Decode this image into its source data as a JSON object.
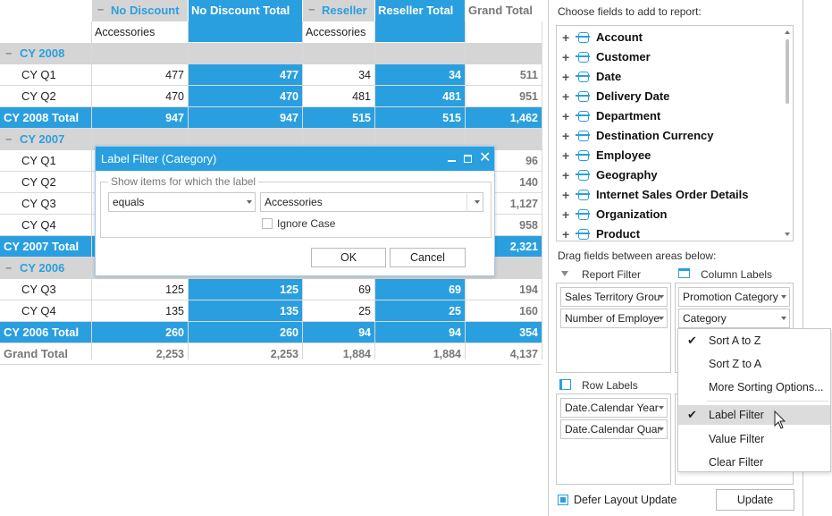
{
  "pivot": {
    "col_headers": {
      "no_discount": "No Discount",
      "no_discount_total": "No Discount Total",
      "reseller": "Reseller",
      "reseller_total": "Reseller Total",
      "grand_total": "Grand Total",
      "sub1": "Accessories",
      "sub2": "Accessories",
      "collapse_glyph": "−"
    },
    "rows": [
      {
        "kind": "year",
        "label": "CY 2008"
      },
      {
        "kind": "q",
        "label": "CY Q1",
        "v": [
          "477",
          "477",
          "34",
          "34",
          "511"
        ]
      },
      {
        "kind": "q",
        "label": "CY Q2",
        "v": [
          "470",
          "470",
          "481",
          "481",
          "951"
        ]
      },
      {
        "kind": "total",
        "label": "CY 2008 Total",
        "v": [
          "947",
          "947",
          "515",
          "515",
          "1,462"
        ]
      },
      {
        "kind": "year",
        "label": "CY 2007"
      },
      {
        "kind": "q",
        "label": "CY Q1",
        "v": [
          "",
          "",
          "",
          "",
          "96"
        ]
      },
      {
        "kind": "q",
        "label": "CY Q2",
        "v": [
          "",
          "",
          "",
          "",
          "140"
        ]
      },
      {
        "kind": "q",
        "label": "CY Q3",
        "v": [
          "",
          "",
          "",
          "",
          "1,127"
        ]
      },
      {
        "kind": "q",
        "label": "CY Q4",
        "v": [
          "",
          "",
          "",
          "",
          "958"
        ]
      },
      {
        "kind": "total",
        "label": "CY 2007 Total",
        "v": [
          "",
          "",
          "",
          "",
          "2,321"
        ]
      },
      {
        "kind": "year",
        "label": "CY 2006"
      },
      {
        "kind": "q",
        "label": "CY Q3",
        "v": [
          "125",
          "125",
          "69",
          "69",
          "194"
        ]
      },
      {
        "kind": "q",
        "label": "CY Q4",
        "v": [
          "135",
          "135",
          "25",
          "25",
          "160"
        ]
      },
      {
        "kind": "total",
        "label": "CY 2006 Total",
        "v": [
          "260",
          "260",
          "94",
          "94",
          "354"
        ]
      },
      {
        "kind": "grand",
        "label": "Grand Total",
        "v": [
          "2,253",
          "2,253",
          "1,884",
          "1,884",
          "4,137"
        ]
      }
    ]
  },
  "dialog": {
    "title": "Label Filter (Category)",
    "group_label": "Show items for which the label",
    "operator": "equals",
    "value": "Accessories",
    "ignore_case": "Ignore Case",
    "ok": "OK",
    "cancel": "Cancel"
  },
  "fieldlist": {
    "heading": "Choose fields to add to report:",
    "fields": [
      "Account",
      "Customer",
      "Date",
      "Delivery Date",
      "Department",
      "Destination Currency",
      "Employee",
      "Geography",
      "Internet Sales Order Details",
      "Organization",
      "Product"
    ],
    "drag_heading": "Drag fields between areas below:",
    "report_filter": "Report Filter",
    "column_labels": "Column Labels",
    "row_labels": "Row Labels",
    "report_filter_items": [
      "Sales Territory Grou",
      "Number of Employe"
    ],
    "column_items": [
      "Promotion Category",
      "Category"
    ],
    "row_items": [
      "Date.Calendar Year",
      "Date.Calendar Quar"
    ],
    "defer": "Defer Layout Update",
    "update": "Update"
  },
  "context_menu": {
    "items": [
      {
        "label": "Sort A to Z",
        "checked": true
      },
      {
        "label": "Sort Z to A",
        "checked": false
      },
      {
        "label": "More Sorting Options...",
        "checked": false
      },
      {
        "label": "Label Filter",
        "checked": true
      },
      {
        "label": "Value Filter",
        "checked": false
      },
      {
        "label": "Clear Filter",
        "checked": false
      }
    ],
    "check_glyph": "✔"
  },
  "colors": {
    "accent": "#2a9fdf",
    "gray_band": "#d5d5d5",
    "grid": "#d9d9d9"
  }
}
